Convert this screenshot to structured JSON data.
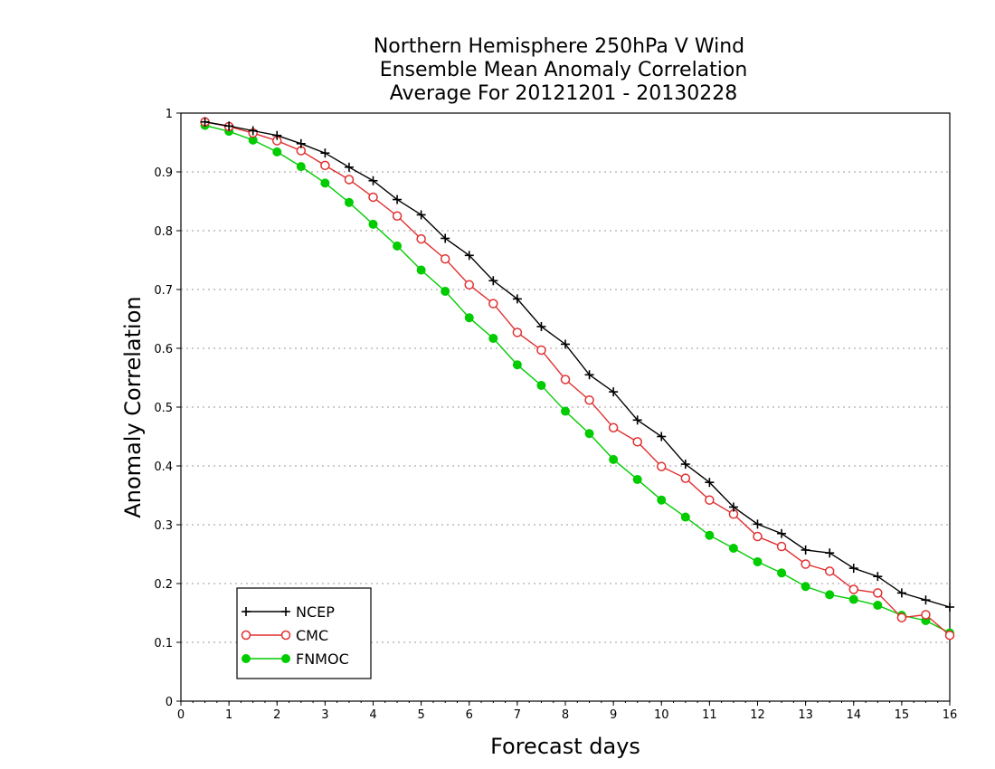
{
  "chart_data": {
    "type": "line",
    "title": [
      "Northern Hemisphere 250hPa V Wind",
      "Ensemble Mean Anomaly Correlation",
      "Average For 20121201 - 20130228"
    ],
    "xlabel": "Forecast days",
    "ylabel": "Anomaly Correlation",
    "xlim": [
      0,
      16
    ],
    "ylim": [
      0,
      1
    ],
    "xticks": [
      "0",
      "1",
      "2",
      "3",
      "4",
      "5",
      "6",
      "7",
      "8",
      "9",
      "10",
      "11",
      "12",
      "13",
      "14",
      "15",
      "16"
    ],
    "yticks": [
      "0",
      "0.1",
      "0.2",
      "0.3",
      "0.4",
      "0.5",
      "0.6",
      "0.7",
      "0.8",
      "0.9",
      "1"
    ],
    "grid": "horizontal dotted",
    "legend_position": "bottom-left",
    "x": [
      0.5,
      1,
      1.5,
      2,
      2.5,
      3,
      3.5,
      4,
      4.5,
      5,
      5.5,
      6,
      6.5,
      7,
      7.5,
      8,
      8.5,
      9,
      9.5,
      10,
      10.5,
      11,
      11.5,
      12,
      12.5,
      13,
      13.5,
      14,
      14.5,
      15,
      15.5,
      16
    ],
    "series": [
      {
        "name": "NCEP",
        "color": "#000000",
        "marker": "plus",
        "values": [
          0.985,
          0.978,
          0.97,
          0.962,
          0.948,
          0.932,
          0.908,
          0.885,
          0.853,
          0.827,
          0.787,
          0.758,
          0.715,
          0.684,
          0.637,
          0.607,
          0.555,
          0.526,
          0.478,
          0.45,
          0.403,
          0.372,
          0.33,
          0.301,
          0.285,
          0.257,
          0.252,
          0.226,
          0.212,
          0.184,
          0.172,
          0.16
        ]
      },
      {
        "name": "CMC",
        "color": "#e03030",
        "marker": "open-circle",
        "values": [
          0.985,
          0.977,
          0.966,
          0.953,
          0.936,
          0.911,
          0.887,
          0.857,
          0.825,
          0.786,
          0.752,
          0.708,
          0.676,
          0.627,
          0.597,
          0.547,
          0.512,
          0.465,
          0.441,
          0.399,
          0.379,
          0.342,
          0.318,
          0.28,
          0.263,
          0.233,
          0.221,
          0.19,
          0.184,
          0.142,
          0.147,
          0.112
        ]
      },
      {
        "name": "FNMOC",
        "color": "#00cc00",
        "marker": "filled-circle",
        "values": [
          0.979,
          0.969,
          0.954,
          0.934,
          0.909,
          0.881,
          0.848,
          0.811,
          0.774,
          0.733,
          0.697,
          0.652,
          0.617,
          0.572,
          0.537,
          0.493,
          0.455,
          0.411,
          0.377,
          0.342,
          0.313,
          0.282,
          0.26,
          0.237,
          0.218,
          0.195,
          0.181,
          0.173,
          0.163,
          0.146,
          0.137,
          0.116
        ]
      }
    ]
  }
}
